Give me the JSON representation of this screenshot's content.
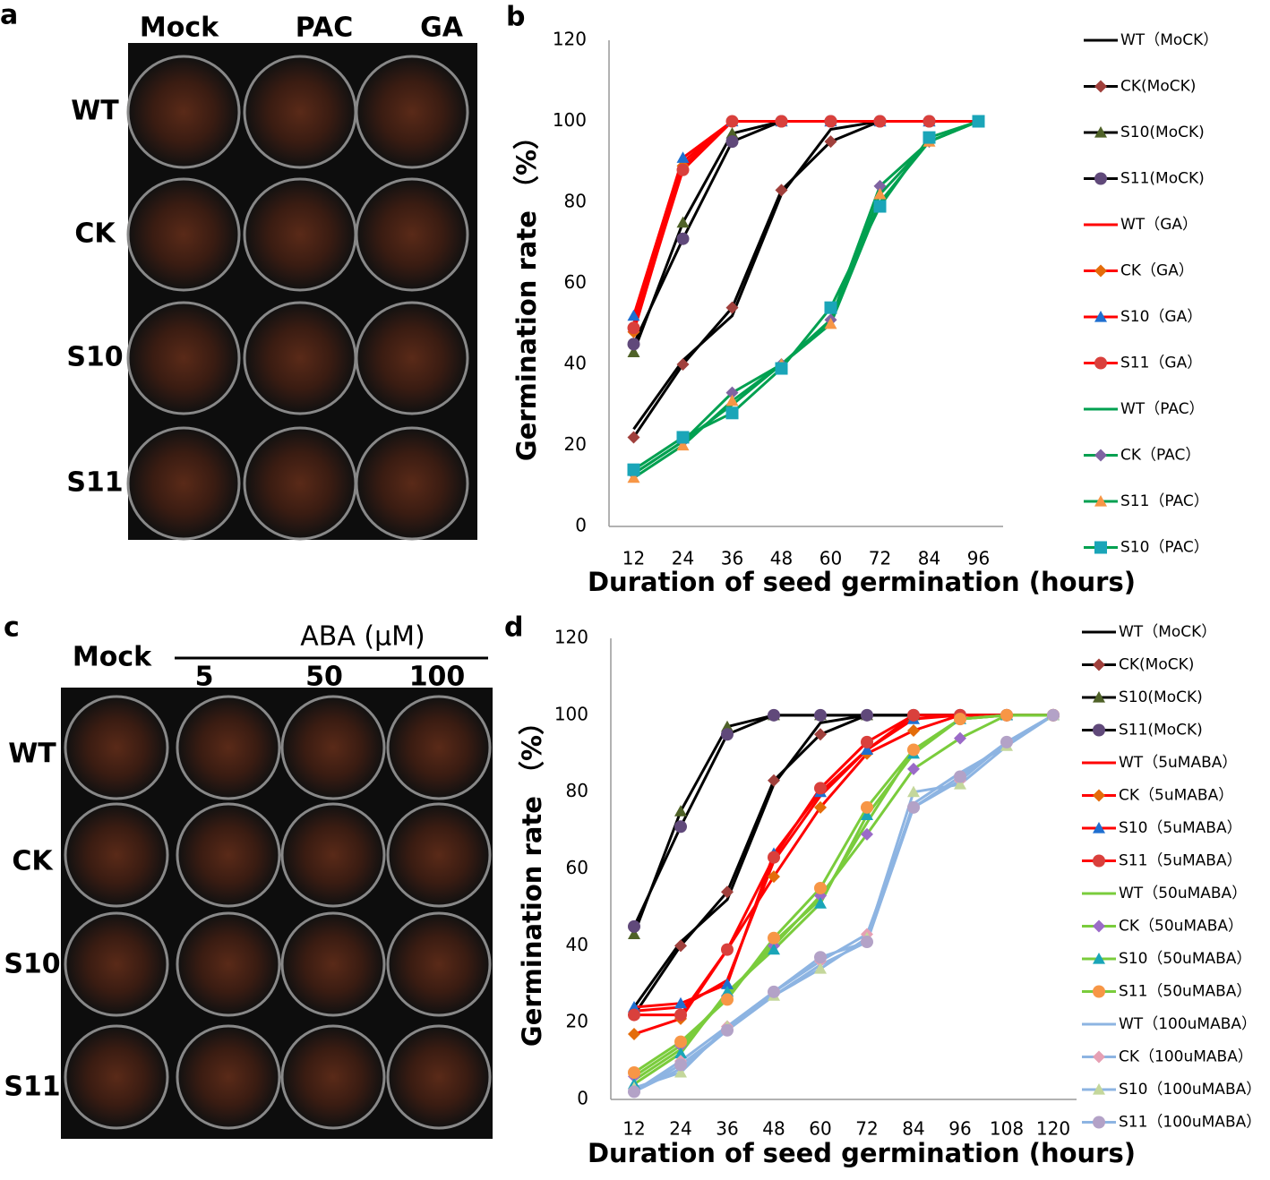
{
  "panel_a": {
    "letter": "a",
    "columns": [
      "Mock",
      "PAC",
      "GA"
    ],
    "rows": [
      "WT",
      "CK",
      "S10",
      "S11"
    ]
  },
  "panel_c": {
    "letter": "c",
    "mock": "Mock",
    "title": "ABA (μM)",
    "columns": [
      "5",
      "50",
      "100"
    ],
    "rows": [
      "WT",
      "CK",
      "S10",
      "S11"
    ]
  },
  "chart_data": [
    {
      "type": "line",
      "panel": "b",
      "categories": [
        "12",
        "24",
        "36",
        "48",
        "60",
        "72",
        "84",
        "96"
      ],
      "xlabel": "Duration of seed germination (hours)",
      "ylabel": "Germination rate （%）",
      "ylim": [
        0,
        120
      ],
      "yticks": [
        0,
        20,
        40,
        60,
        80,
        100,
        120
      ],
      "grid": false,
      "legend": "right",
      "series": [
        {
          "name": "WT（MoCK）",
          "color": "#000000",
          "marker": "none",
          "values": [
            24,
            41,
            52,
            82,
            98,
            100,
            100,
            100
          ]
        },
        {
          "name": "CK(MoCK)",
          "color": "#000000",
          "marker": "diamond",
          "marker_color": "#a0403c",
          "values": [
            22,
            40,
            54,
            83,
            95,
            100,
            100,
            100
          ]
        },
        {
          "name": "S10(MoCK)",
          "color": "#000000",
          "marker": "triangle",
          "marker_color": "#4f6228",
          "values": [
            43,
            75,
            97,
            100,
            100,
            100,
            100,
            100
          ]
        },
        {
          "name": "S11(MoCK)",
          "color": "#000000",
          "marker": "circle",
          "marker_color": "#60497a",
          "values": [
            45,
            71,
            95,
            100,
            100,
            100,
            100,
            100
          ]
        },
        {
          "name": "WT（GA）",
          "color": "#ff0000",
          "marker": "none",
          "values": [
            50,
            90,
            100,
            100,
            100,
            100,
            100,
            100
          ]
        },
        {
          "name": "CK（GA）",
          "color": "#ff0000",
          "marker": "diamond",
          "marker_color": "#e46c0a",
          "values": [
            48,
            89,
            100,
            100,
            100,
            100,
            100,
            100
          ]
        },
        {
          "name": "S10（GA）",
          "color": "#ff0000",
          "marker": "triangle",
          "marker_color": "#1f6fd0",
          "values": [
            52,
            91,
            100,
            100,
            100,
            100,
            100,
            100
          ]
        },
        {
          "name": "S11（GA）",
          "color": "#ff0000",
          "marker": "circle",
          "marker_color": "#d9403c",
          "values": [
            49,
            88,
            100,
            100,
            100,
            100,
            100,
            100
          ]
        },
        {
          "name": "WT（PAC）",
          "color": "#00a050",
          "marker": "none",
          "values": [
            13,
            21,
            30,
            40,
            50,
            80,
            95,
            100
          ]
        },
        {
          "name": "CK（PAC）",
          "color": "#00a050",
          "marker": "diamond",
          "marker_color": "#8064a2",
          "values": [
            13,
            21,
            33,
            40,
            51,
            84,
            95,
            100
          ]
        },
        {
          "name": "S11（PAC）",
          "color": "#00a050",
          "marker": "triangle",
          "marker_color": "#f79646",
          "values": [
            12,
            20,
            31,
            40,
            50,
            82,
            95,
            100
          ]
        },
        {
          "name": "S10（PAC）",
          "color": "#00a050",
          "marker": "square",
          "marker_color": "#1aa5b8",
          "values": [
            14,
            22,
            28,
            39,
            54,
            79,
            96,
            100
          ]
        }
      ]
    },
    {
      "type": "line",
      "panel": "d",
      "categories": [
        "12",
        "24",
        "36",
        "48",
        "60",
        "72",
        "84",
        "96",
        "108",
        "120"
      ],
      "xlabel": "Duration of seed germination (hours)",
      "ylabel": "Germination rate （%）",
      "ylim": [
        0,
        120
      ],
      "yticks": [
        0,
        20,
        40,
        60,
        80,
        100,
        120
      ],
      "grid": false,
      "legend": "right",
      "series": [
        {
          "name": "WT（MoCK）",
          "color": "#000000",
          "marker": "none",
          "values": [
            24,
            41,
            52,
            82,
            98,
            100,
            100,
            100,
            100,
            100
          ]
        },
        {
          "name": "CK(MoCK)",
          "color": "#000000",
          "marker": "diamond",
          "marker_color": "#a0403c",
          "values": [
            22,
            40,
            54,
            83,
            95,
            100,
            100,
            100,
            100,
            100
          ]
        },
        {
          "name": "S10(MoCK)",
          "color": "#000000",
          "marker": "triangle",
          "marker_color": "#4f6228",
          "values": [
            43,
            75,
            97,
            100,
            100,
            100,
            100,
            100,
            100,
            100
          ]
        },
        {
          "name": "S11(MoCK)",
          "color": "#000000",
          "marker": "circle",
          "marker_color": "#60497a",
          "values": [
            45,
            71,
            95,
            100,
            100,
            100,
            100,
            100,
            100,
            100
          ]
        },
        {
          "name": "WT（5uMABA）",
          "color": "#ff0000",
          "marker": "none",
          "values": [
            23,
            24,
            31,
            62,
            79,
            91,
            100,
            100,
            100,
            100
          ]
        },
        {
          "name": "CK（5uMABA）",
          "color": "#ff0000",
          "marker": "diamond",
          "marker_color": "#e46c0a",
          "values": [
            17,
            21,
            39,
            58,
            76,
            90,
            96,
            100,
            100,
            100
          ]
        },
        {
          "name": "S10（5uMABA）",
          "color": "#ff0000",
          "marker": "triangle",
          "marker_color": "#1f6fd0",
          "values": [
            24,
            25,
            30,
            64,
            80,
            91,
            99,
            100,
            100,
            100
          ]
        },
        {
          "name": "S11（5uMABA）",
          "color": "#ff0000",
          "marker": "circle",
          "marker_color": "#d9403c",
          "values": [
            22,
            22,
            39,
            63,
            81,
            93,
            100,
            100,
            100,
            100
          ]
        },
        {
          "name": "WT（50uMABA）",
          "color": "#7acc3c",
          "marker": "none",
          "values": [
            5,
            13,
            27,
            41,
            52,
            72,
            91,
            99,
            100,
            100
          ]
        },
        {
          "name": "CK（50uMABA）",
          "color": "#7acc3c",
          "marker": "diamond",
          "marker_color": "#9b6bc8",
          "values": [
            6,
            14,
            27,
            40,
            53,
            69,
            86,
            94,
            100,
            100
          ]
        },
        {
          "name": "S10（50uMABA）",
          "color": "#7acc3c",
          "marker": "triangle",
          "marker_color": "#1aa5b8",
          "values": [
            4,
            12,
            28,
            39,
            51,
            74,
            90,
            99,
            100,
            100
          ]
        },
        {
          "name": "S11（50uMABA）",
          "color": "#7acc3c",
          "marker": "circle",
          "marker_color": "#f79646",
          "values": [
            7,
            15,
            26,
            42,
            55,
            76,
            91,
            99,
            100,
            100
          ]
        },
        {
          "name": "WT（100uMABA）",
          "color": "#8db4e2",
          "marker": "none",
          "values": [
            2,
            8,
            18,
            27,
            35,
            41,
            77,
            85,
            92,
            100
          ]
        },
        {
          "name": "CK（100uMABA）",
          "color": "#8db4e2",
          "marker": "diamond",
          "marker_color": "#e6a0b4",
          "values": [
            2,
            10,
            19,
            28,
            36,
            43,
            76,
            83,
            93,
            100
          ]
        },
        {
          "name": "S10（100uMABA）",
          "color": "#8db4e2",
          "marker": "triangle",
          "marker_color": "#c4d79b",
          "values": [
            3,
            7,
            19,
            27,
            34,
            42,
            80,
            82,
            92,
            100
          ]
        },
        {
          "name": "S11（100uMABA）",
          "color": "#8db4e2",
          "marker": "circle",
          "marker_color": "#b3a2c7",
          "values": [
            2,
            9,
            18,
            28,
            37,
            41,
            76,
            84,
            93,
            100
          ]
        }
      ]
    }
  ]
}
